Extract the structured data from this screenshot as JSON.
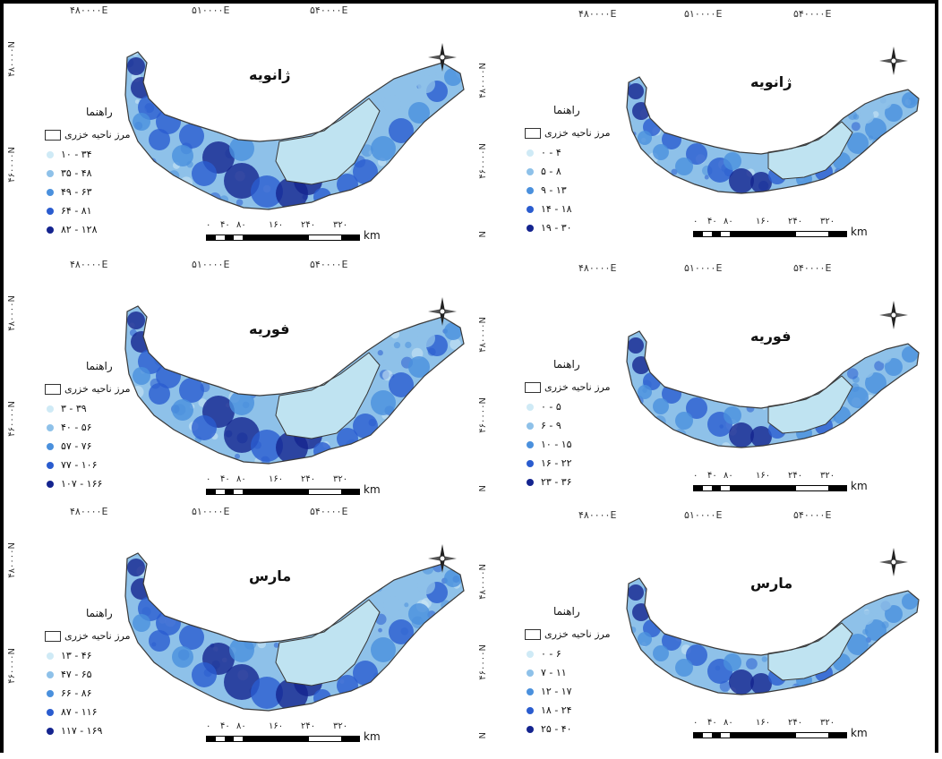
{
  "panel_text": {
    "coords_top_left": [
      "۴۸۰۰۰۰E",
      "۵۱۰۰۰۰E",
      "۵۴۰۰۰۰E"
    ],
    "coords_side_left": [
      "۴۸۰۰۰۰N",
      "۴۶۰۰۰۰N"
    ],
    "coords_top_right": [
      "۴۸۰۰۰۰E",
      "۵۱۰۰۰۰E",
      "۵۴۰۰۰۰E"
    ],
    "coords_side_right": [
      "۴۸۰۰۰۰N",
      "۴۶۰۰۰۰N",
      "N"
    ],
    "guide_title": "راهنما",
    "boundary_label": "مرز ناحیه خزری",
    "scale_labels": [
      "۰",
      "۴۰",
      "۸۰",
      "۱۶۰",
      "۲۴۰",
      "۳۲۰"
    ],
    "scale_unit": "km"
  },
  "colors": {
    "class_1": "#cfeaf6",
    "class_2": "#8ec1e9",
    "class_3": "#4a90dd",
    "class_4": "#2a5ccf",
    "class_5": "#14248f",
    "boundary_fill": "#bfe3f1",
    "boundary_stroke": "#3a3a3a"
  },
  "maps": [
    {
      "month": "ژانویه",
      "legend": [
        "۱۰ - ۳۴",
        "۳۵ - ۴۸",
        "۴۹ - ۶۳",
        "۶۴ - ۸۱",
        "۸۲ - ۱۲۸"
      ]
    },
    {
      "month": "ژانویه",
      "legend": [
        "۰ - ۴",
        "۵ - ۸",
        "۹ - ۱۳",
        "۱۴ - ۱۸",
        "۱۹ - ۳۰"
      ]
    },
    {
      "month": "فوریه",
      "legend": [
        "۳ - ۳۹",
        "۴۰ - ۵۶",
        "۵۷ - ۷۶",
        "۷۷ - ۱۰۶",
        "۱۰۷ - ۱۶۶"
      ]
    },
    {
      "month": "فوریه",
      "legend": [
        "۰ - ۵",
        "۶ - ۹",
        "۱۰ - ۱۵",
        "۱۶ - ۲۲",
        "۲۳ - ۳۶"
      ]
    },
    {
      "month": "مارس",
      "legend": [
        "۱۳ - ۴۶",
        "۴۷ - ۶۵",
        "۶۶ - ۸۶",
        "۸۷ - ۱۱۶",
        "۱۱۷ - ۱۶۹"
      ]
    },
    {
      "month": "مارس",
      "legend": [
        "۰ - ۶",
        "۷ - ۱۱",
        "۱۲ - ۱۷",
        "۱۸ - ۲۴",
        "۲۵ - ۴۰"
      ]
    }
  ]
}
